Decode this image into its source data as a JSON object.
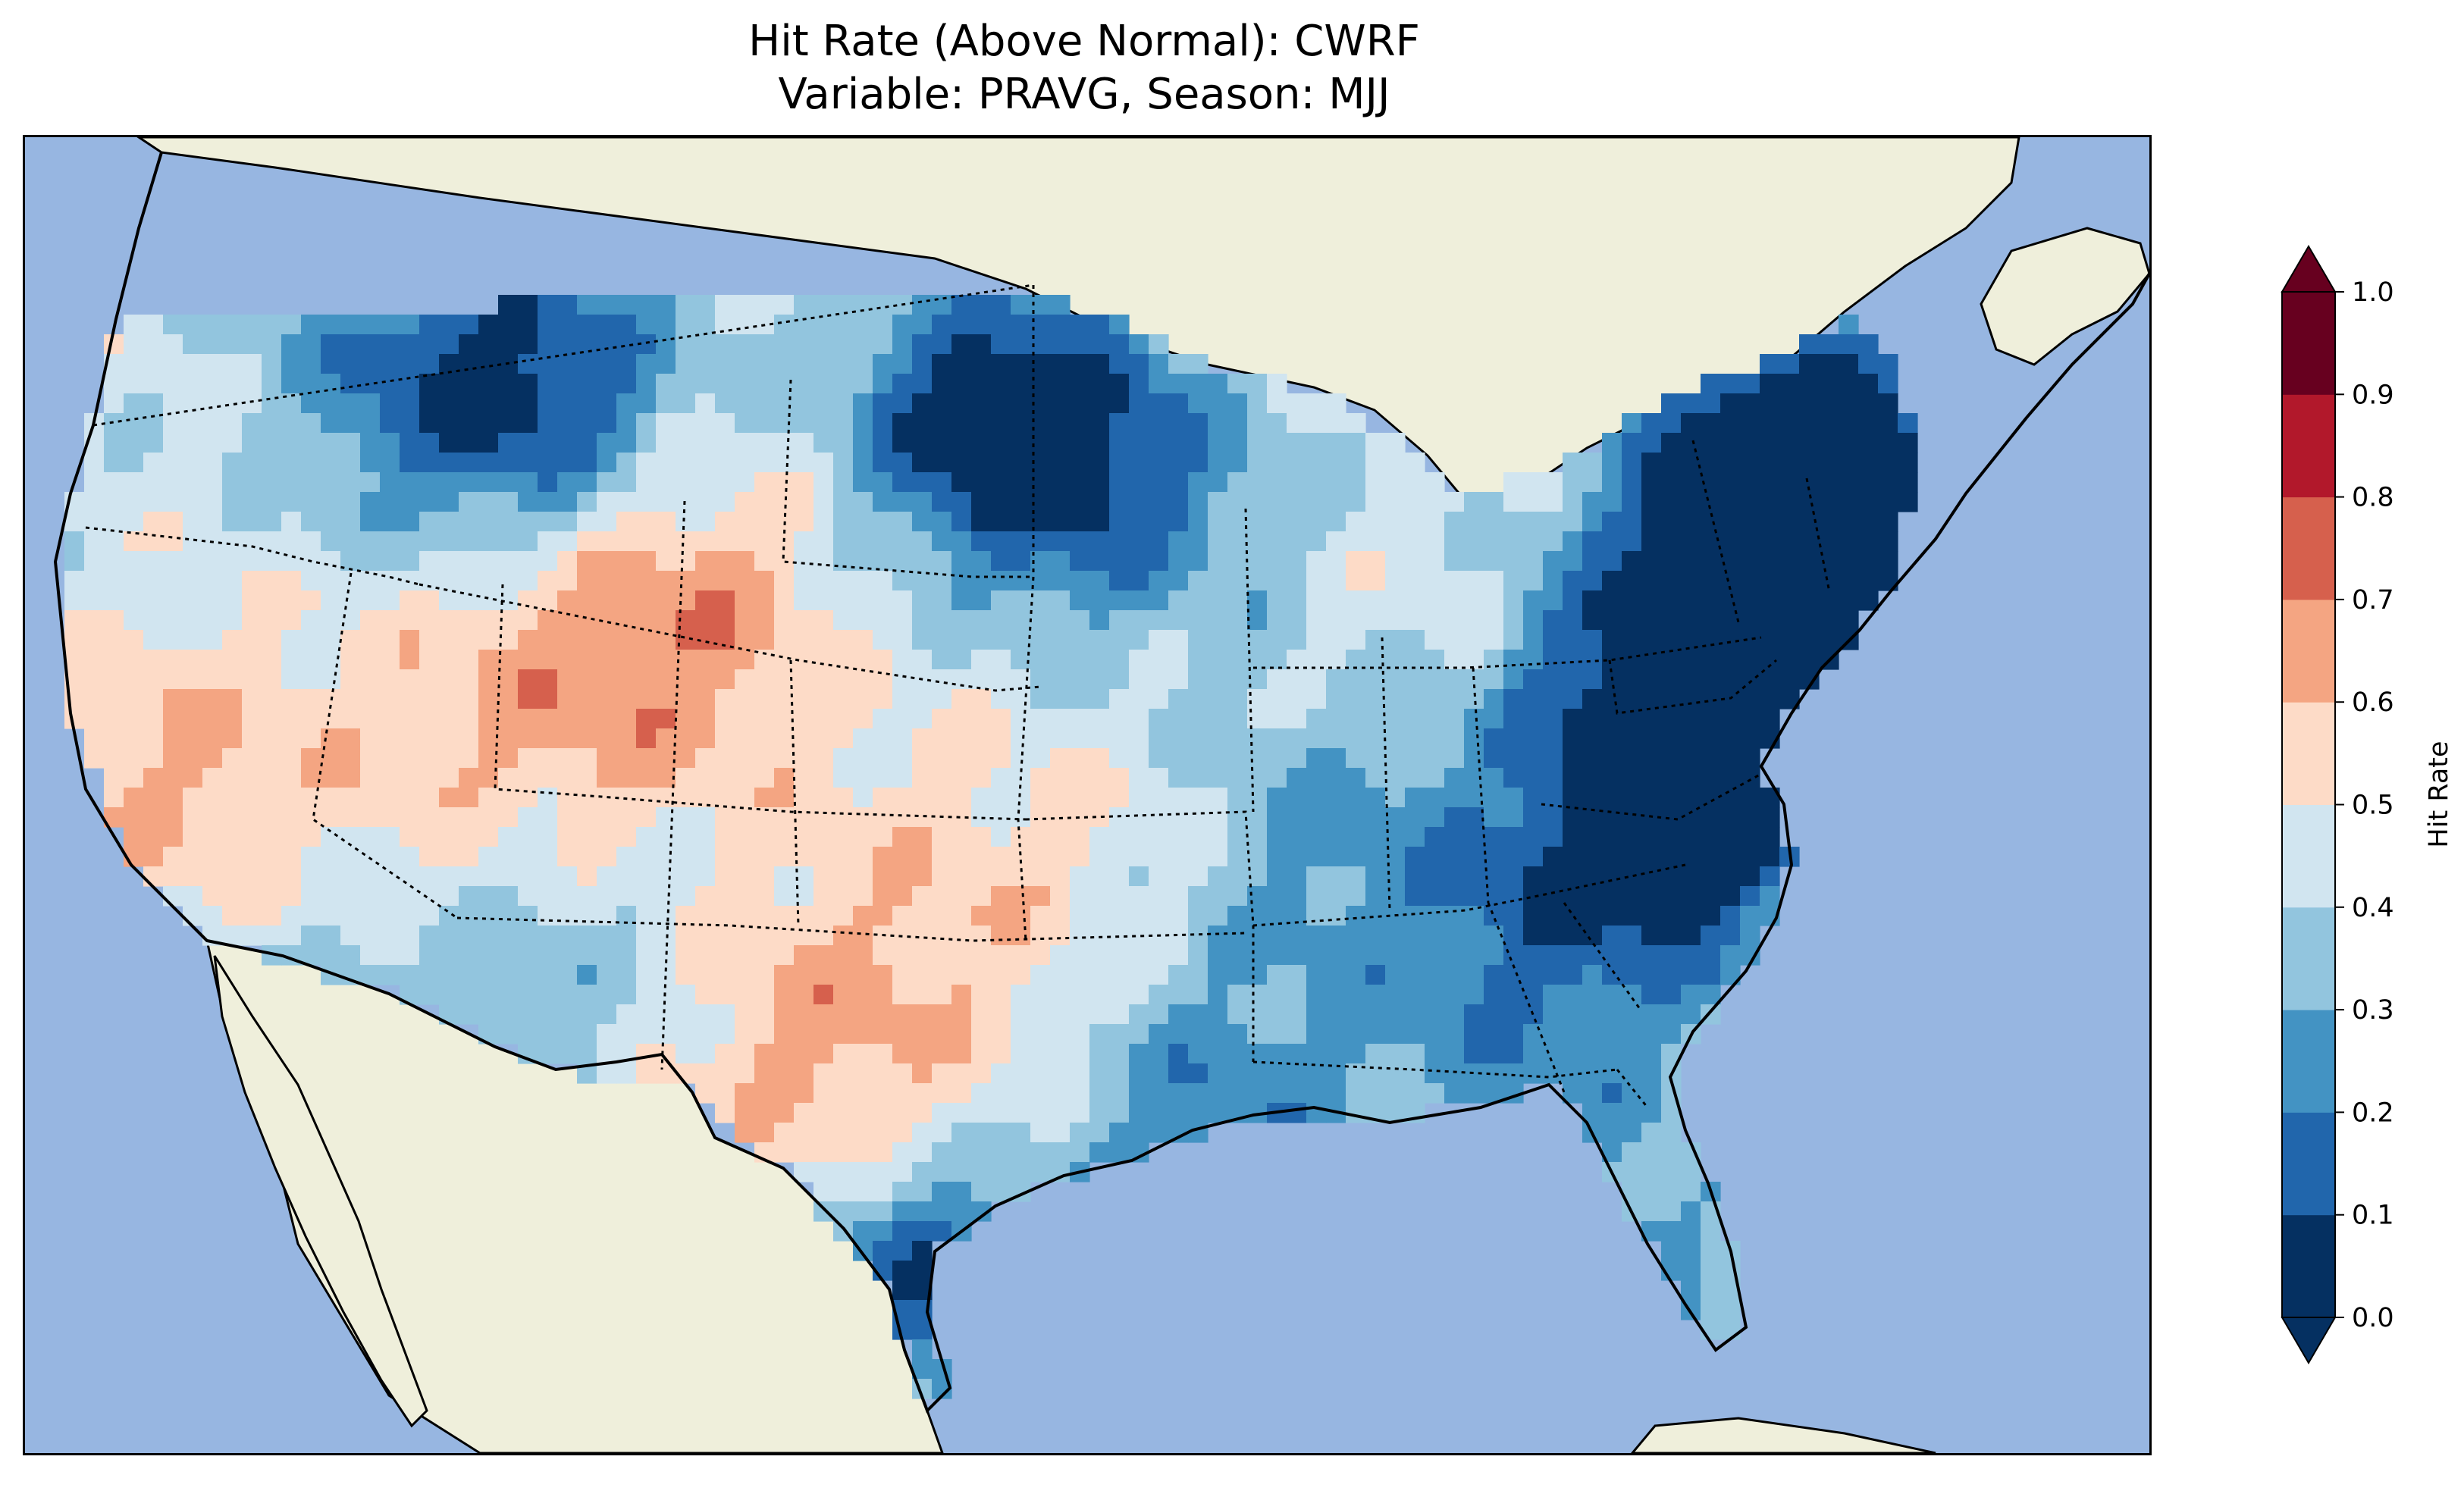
{
  "title": {
    "line1": "Hit Rate (Above Normal): CWRF",
    "line2": "Variable: PRAVG, Season: MJJ"
  },
  "colors": {
    "ocean": "#97b6e1",
    "land": "#efefdb",
    "border": "#000000"
  },
  "colorbar": {
    "label": "Hit Rate",
    "ticks": [
      "0.0",
      "0.1",
      "0.2",
      "0.3",
      "0.4",
      "0.5",
      "0.6",
      "0.7",
      "0.8",
      "0.9",
      "1.0"
    ],
    "bins": [
      {
        "range": [
          0.0,
          0.1
        ],
        "color": "#053061"
      },
      {
        "range": [
          0.1,
          0.2
        ],
        "color": "#2166ac"
      },
      {
        "range": [
          0.2,
          0.3
        ],
        "color": "#4393c3"
      },
      {
        "range": [
          0.3,
          0.4
        ],
        "color": "#92c5de"
      },
      {
        "range": [
          0.4,
          0.5
        ],
        "color": "#d1e5f0"
      },
      {
        "range": [
          0.5,
          0.6
        ],
        "color": "#fddbc7"
      },
      {
        "range": [
          0.6,
          0.7
        ],
        "color": "#f4a582"
      },
      {
        "range": [
          0.7,
          0.8
        ],
        "color": "#d6604d"
      },
      {
        "range": [
          0.8,
          0.9
        ],
        "color": "#b2182b"
      },
      {
        "range": [
          0.9,
          1.0
        ],
        "color": "#67001f"
      }
    ],
    "extend": "both"
  }
}
